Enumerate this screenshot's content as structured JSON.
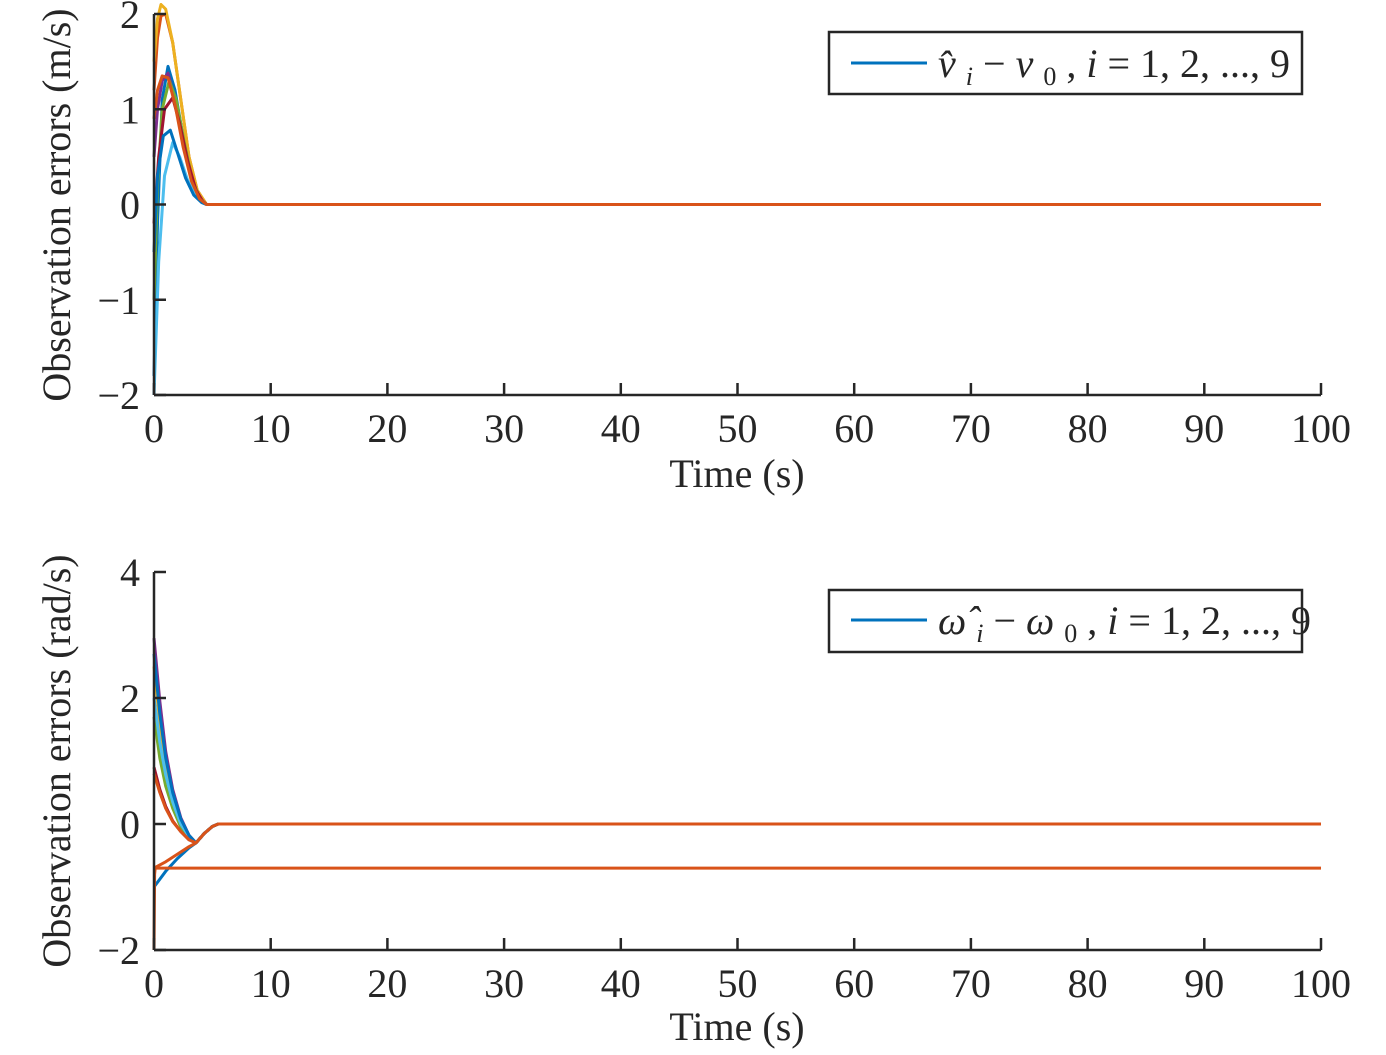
{
  "chart_data": [
    {
      "type": "line",
      "xlabel": "Time (s)",
      "ylabel": "Observation errors (m/s)",
      "xlim": [
        0,
        100
      ],
      "ylim": [
        -2,
        2
      ],
      "xticks": [
        0,
        10,
        20,
        30,
        40,
        50,
        60,
        70,
        80,
        90,
        100
      ],
      "yticks": [
        -2,
        -1,
        0,
        1,
        2
      ],
      "xtick_labels": [
        "0",
        "10",
        "20",
        "30",
        "40",
        "50",
        "60",
        "70",
        "80",
        "90",
        "100"
      ],
      "ytick_labels": [
        "−2",
        "−1",
        "0",
        "1",
        "2"
      ],
      "grid": false,
      "legend": {
        "position": "top-right",
        "entries": [
          {
            "parts": [
              "v̂",
              "i",
              " − ",
              "v",
              "0",
              ", ",
              "i",
              " = 1, 2, ..., 9"
            ],
            "color": "#0072BD"
          }
        ]
      },
      "settle_time": 4.5,
      "series": [
        {
          "color": "#0072BD",
          "x": [
            0,
            0.3,
            0.7,
            1.2,
            1.8,
            2.5,
            3.2,
            3.9,
            4.5,
            100
          ],
          "y": [
            -1.8,
            -0.2,
            1.1,
            1.45,
            1.2,
            0.7,
            0.3,
            0.08,
            0.0,
            0.0
          ]
        },
        {
          "color": "#D95319",
          "x": [
            0,
            0.3,
            0.6,
            1.0,
            1.6,
            2.3,
            3.0,
            3.7,
            4.5,
            100
          ],
          "y": [
            1.2,
            1.75,
            1.98,
            2.0,
            1.7,
            1.1,
            0.5,
            0.15,
            0.0,
            0.0
          ]
        },
        {
          "color": "#EDB120",
          "x": [
            0,
            0.3,
            0.6,
            1.0,
            1.6,
            2.3,
            3.0,
            3.7,
            4.5,
            100
          ],
          "y": [
            1.5,
            1.95,
            2.1,
            2.05,
            1.7,
            1.1,
            0.5,
            0.15,
            0.0,
            0.0
          ]
        },
        {
          "color": "#7E2F8E",
          "x": [
            0,
            0.3,
            0.7,
            1.2,
            1.8,
            2.5,
            3.2,
            3.9,
            4.5,
            100
          ],
          "y": [
            0.5,
            1.0,
            1.3,
            1.38,
            1.1,
            0.65,
            0.28,
            0.07,
            0.0,
            0.0
          ]
        },
        {
          "color": "#77AC30",
          "x": [
            0,
            0.3,
            0.7,
            1.3,
            1.9,
            2.6,
            3.3,
            4.0,
            4.5,
            100
          ],
          "y": [
            -1.0,
            0.2,
            1.0,
            1.3,
            1.1,
            0.65,
            0.25,
            0.05,
            0.0,
            0.0
          ]
        },
        {
          "color": "#4DBEEE",
          "x": [
            0,
            0.4,
            0.9,
            1.6,
            2.2,
            2.9,
            3.6,
            4.2,
            4.5,
            100
          ],
          "y": [
            -2.0,
            -0.6,
            0.3,
            0.65,
            0.5,
            0.25,
            0.08,
            0.02,
            0.0,
            0.0
          ]
        },
        {
          "color": "#A2142F",
          "x": [
            0,
            0.4,
            0.9,
            1.6,
            2.2,
            2.9,
            3.6,
            4.2,
            4.5,
            100
          ],
          "y": [
            -0.2,
            0.5,
            1.0,
            1.12,
            0.85,
            0.45,
            0.15,
            0.03,
            0.0,
            0.0
          ]
        },
        {
          "color": "#0072BD",
          "x": [
            0,
            0.3,
            0.8,
            1.4,
            2.0,
            2.7,
            3.4,
            4.1,
            4.5,
            100
          ],
          "y": [
            -0.5,
            0.3,
            0.72,
            0.78,
            0.55,
            0.28,
            0.1,
            0.02,
            0.0,
            0.0
          ]
        },
        {
          "color": "#D95319",
          "x": [
            0,
            0.3,
            0.7,
            1.2,
            1.8,
            2.5,
            3.2,
            3.9,
            4.5,
            100
          ],
          "y": [
            0.9,
            1.2,
            1.35,
            1.33,
            1.05,
            0.6,
            0.25,
            0.06,
            0.0,
            0.0
          ]
        }
      ]
    },
    {
      "type": "line",
      "xlabel": "Time (s)",
      "ylabel": "Observation errors (rad/s)",
      "xlim": [
        0,
        100
      ],
      "ylim": [
        -2,
        4
      ],
      "xticks": [
        0,
        10,
        20,
        30,
        40,
        50,
        60,
        70,
        80,
        90,
        100
      ],
      "yticks": [
        -2,
        0,
        2,
        4
      ],
      "xtick_labels": [
        "0",
        "10",
        "20",
        "30",
        "40",
        "50",
        "60",
        "70",
        "80",
        "90",
        "100"
      ],
      "ytick_labels": [
        "−2",
        "0",
        "2",
        "4"
      ],
      "grid": false,
      "legend": {
        "position": "top-right",
        "entries": [
          {
            "parts": [
              "ω̂",
              "i",
              " − ",
              "ω",
              "0",
              ", ",
              "i",
              " = 1, 2, ..., 9"
            ],
            "color": "#0072BD"
          }
        ]
      },
      "settle_time": 5.5,
      "series": [
        {
          "color": "#0072BD",
          "x": [
            0,
            1,
            2,
            3,
            3.6,
            4.3,
            5.0,
            5.5,
            100
          ],
          "y": [
            -1.0,
            -0.75,
            -0.55,
            -0.38,
            -0.3,
            -0.15,
            -0.04,
            0.0,
            0.0
          ]
        },
        {
          "color": "#D95319",
          "x": [
            0,
            1,
            2,
            3,
            3.6,
            4.3,
            5.0,
            5.5,
            100
          ],
          "y": [
            -0.7,
            -0.6,
            -0.48,
            -0.36,
            -0.3,
            -0.15,
            -0.04,
            0.0,
            0.0
          ]
        },
        {
          "color": "#EDB120",
          "x": [
            0,
            0.5,
            1.0,
            1.6,
            2.3,
            3.0,
            3.6,
            4.3,
            5.0,
            5.5,
            100
          ],
          "y": [
            2.5,
            1.6,
            0.95,
            0.45,
            0.05,
            -0.2,
            -0.3,
            -0.15,
            -0.04,
            0.0,
            0.0
          ]
        },
        {
          "color": "#7E2F8E",
          "x": [
            0,
            0.5,
            1.0,
            1.6,
            2.3,
            3.0,
            3.6,
            4.3,
            5.0,
            5.5,
            100
          ],
          "y": [
            2.95,
            1.95,
            1.15,
            0.55,
            0.1,
            -0.18,
            -0.3,
            -0.15,
            -0.04,
            0.0,
            0.0
          ]
        },
        {
          "color": "#77AC30",
          "x": [
            0,
            0.5,
            1.0,
            1.6,
            2.3,
            3.0,
            3.6,
            4.3,
            5.0,
            5.5,
            100
          ],
          "y": [
            1.7,
            1.05,
            0.6,
            0.25,
            -0.05,
            -0.22,
            -0.3,
            -0.15,
            -0.04,
            0.0,
            0.0
          ]
        },
        {
          "color": "#4DBEEE",
          "x": [
            0,
            0.5,
            1.0,
            1.6,
            2.3,
            3.0,
            3.6,
            4.3,
            5.0,
            5.5,
            100
          ],
          "y": [
            2.0,
            1.3,
            0.78,
            0.35,
            0.0,
            -0.2,
            -0.3,
            -0.15,
            -0.04,
            0.0,
            0.0
          ]
        },
        {
          "color": "#A2142F",
          "x": [
            0,
            0.5,
            1.0,
            1.6,
            2.3,
            3.0,
            3.6,
            4.3,
            5.0,
            5.5,
            100
          ],
          "y": [
            0.9,
            0.55,
            0.28,
            0.05,
            -0.12,
            -0.25,
            -0.3,
            -0.15,
            -0.04,
            0.0,
            0.0
          ]
        },
        {
          "color": "#0072BD",
          "x": [
            0,
            0.5,
            1.0,
            1.6,
            2.3,
            3.0,
            3.6,
            4.3,
            5.0,
            5.5,
            100
          ],
          "y": [
            2.7,
            1.75,
            1.05,
            0.5,
            0.08,
            -0.18,
            -0.3,
            -0.15,
            -0.04,
            0.0,
            0.0
          ]
        },
        {
          "color": "#D95319",
          "x": [
            0,
            0.5,
            1.0,
            1.6,
            2.3,
            3.0,
            3.6,
            4.3,
            5.0,
            5.5,
            100
          ],
          "y": [
            0.8,
            0.5,
            0.25,
            0.04,
            -0.12,
            -0.25,
            -0.3,
            -0.15,
            -0.04,
            0.0,
            0.0
          ]
        },
        {
          "color": "#D95319",
          "x": [
            0,
            0.05,
            0.1,
            100
          ],
          "y": [
            -2.0,
            -0.8,
            -0.7,
            -0.7
          ]
        }
      ]
    }
  ]
}
